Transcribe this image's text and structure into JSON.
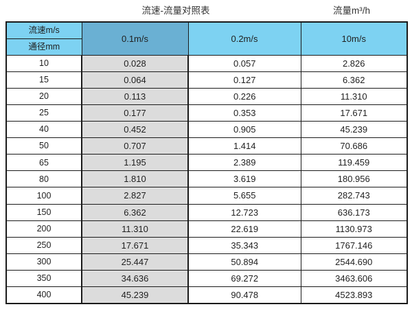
{
  "titles": {
    "main": "流速-流量对照表",
    "flow_unit": "流量m³/h"
  },
  "table_header": {
    "corner_top": "流速m/s",
    "corner_bottom": "通径mm"
  },
  "chart_data": {
    "type": "table",
    "title": "流速-流量对照表",
    "flow_unit_label": "流量m³/h",
    "corner_labels": {
      "velocity": "流速m/s",
      "diameter": "通径mm"
    },
    "columns": [
      "0.1m/s",
      "0.2m/s",
      "10m/s"
    ],
    "rows": [
      {
        "diameter": "10",
        "values": [
          "0.028",
          "0.057",
          "2.826"
        ]
      },
      {
        "diameter": "15",
        "values": [
          "0.064",
          "0.127",
          "6.362"
        ]
      },
      {
        "diameter": "20",
        "values": [
          "0.113",
          "0.226",
          "11.310"
        ]
      },
      {
        "diameter": "25",
        "values": [
          "0.177",
          "0.353",
          "17.671"
        ]
      },
      {
        "diameter": "40",
        "values": [
          "0.452",
          "0.905",
          "45.239"
        ]
      },
      {
        "diameter": "50",
        "values": [
          "0.707",
          "1.414",
          "70.686"
        ]
      },
      {
        "diameter": "65",
        "values": [
          "1.195",
          "2.389",
          "119.459"
        ]
      },
      {
        "diameter": "80",
        "values": [
          "1.810",
          "3.619",
          "180.956"
        ]
      },
      {
        "diameter": "100",
        "values": [
          "2.827",
          "5.655",
          "282.743"
        ]
      },
      {
        "diameter": "150",
        "values": [
          "6.362",
          "12.723",
          "636.173"
        ]
      },
      {
        "diameter": "200",
        "values": [
          "11.310",
          "22.619",
          "1130.973"
        ]
      },
      {
        "diameter": "250",
        "values": [
          "17.671",
          "35.343",
          "1767.146"
        ]
      },
      {
        "diameter": "300",
        "values": [
          "25.447",
          "50.894",
          "2544.690"
        ]
      },
      {
        "diameter": "350",
        "values": [
          "34.636",
          "69.272",
          "3463.606"
        ]
      },
      {
        "diameter": "400",
        "values": [
          "45.239",
          "90.478",
          "4523.893"
        ]
      }
    ]
  },
  "colors": {
    "header_light_blue": "#7DD2F2",
    "header_dark_blue": "#6AB0D3",
    "highlight_gray": "#DCDCDC",
    "border_color": "#1a1a1a"
  }
}
